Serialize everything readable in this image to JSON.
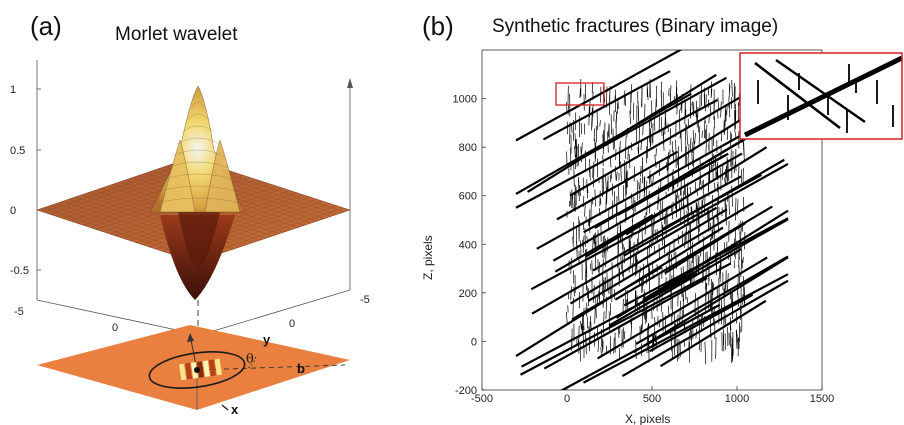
{
  "panel_a": {
    "label": "(a)",
    "title": "Morlet wavelet",
    "z_ticks": [
      "1",
      "0.5",
      "0",
      "-0.5"
    ],
    "x_ticks": [
      "-5",
      "0"
    ],
    "y_ticks": [
      "0",
      "-5"
    ],
    "inset_labels": {
      "x": "x",
      "y": "y",
      "theta": "θ",
      "b": "b"
    },
    "surface": {
      "type": "3d-surface",
      "function": "Morlet wavelet",
      "z_range": [
        -0.7,
        1
      ],
      "peak": 1
    }
  },
  "panel_b": {
    "label": "(b)",
    "title": "Synthetic fractures (Binary image)",
    "xlabel": "X, pixels",
    "ylabel": "Z, pixels"
  },
  "chart_data": [
    {
      "type": "surface",
      "title": "Morlet wavelet",
      "zlim": [
        -1,
        1
      ],
      "zticks": [
        1,
        0.5,
        0,
        -0.5
      ],
      "xticks": [
        -5,
        0
      ],
      "yticks": [
        0,
        -5
      ]
    },
    {
      "type": "scatter",
      "title": "Synthetic fractures (Binary image)",
      "xlabel": "X, pixels",
      "ylabel": "Z, pixels",
      "xlim": [
        -500,
        1500
      ],
      "ylim": [
        -200,
        1200
      ],
      "xticks": [
        -500,
        0,
        500,
        1000,
        1500
      ],
      "yticks": [
        -200,
        0,
        200,
        400,
        600,
        800,
        1000
      ],
      "xtick_labels": [
        "-500",
        "0",
        "500",
        "1000",
        "1500"
      ],
      "ytick_labels": [
        "-200",
        "0",
        "200",
        "400",
        "600",
        "800",
        "1000"
      ],
      "long_fracture_strike_deg": 22,
      "long_fracture_count": 45,
      "short_fracture_count": 900,
      "long_region_x": [
        -300,
        1300
      ],
      "short_region_x": [
        0,
        1050
      ],
      "short_region_z": [
        -50,
        1050
      ]
    }
  ]
}
